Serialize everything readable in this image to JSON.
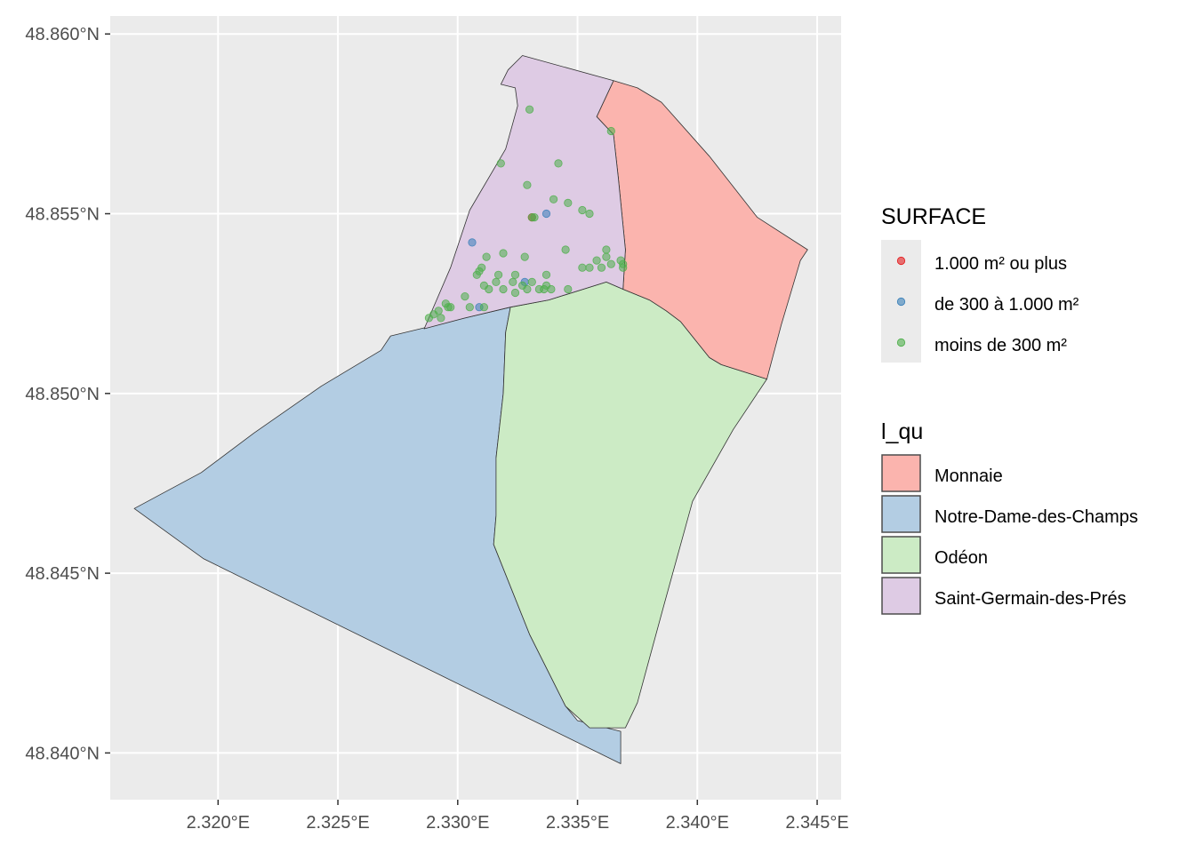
{
  "chart_data": {
    "type": "map",
    "xlim": [
      2.3155,
      2.346
    ],
    "ylim": [
      48.8387,
      48.8605
    ],
    "x_ticks": [
      2.32,
      2.325,
      2.33,
      2.335,
      2.34,
      2.345
    ],
    "x_tick_labels": [
      "2.320°E",
      "2.325°E",
      "2.330°E",
      "2.335°E",
      "2.340°E",
      "2.345°E"
    ],
    "y_ticks": [
      48.84,
      48.845,
      48.85,
      48.855,
      48.86
    ],
    "y_tick_labels": [
      "48.840°N",
      "48.845°N",
      "48.850°N",
      "48.855°N",
      "48.860°N"
    ],
    "grid": true,
    "legend_position": "right",
    "legends": [
      {
        "title": "SURFACE",
        "kind": "point",
        "entries": [
          {
            "label": "1.000 m² ou plus",
            "color": "#e41a1c"
          },
          {
            "label": "de 300 à 1.000 m²",
            "color": "#377eb8"
          },
          {
            "label": "moins de 300 m²",
            "color": "#4daf4a"
          }
        ]
      },
      {
        "title": "l_qu",
        "kind": "fill",
        "entries": [
          {
            "label": "Monnaie",
            "color": "#fbb4ae"
          },
          {
            "label": "Notre-Dame-des-Champs",
            "color": "#b3cde3"
          },
          {
            "label": "Odéon",
            "color": "#ccebc5"
          },
          {
            "label": "Saint-Germain-des-Prés",
            "color": "#decbe4"
          }
        ]
      }
    ],
    "quarters": [
      {
        "name": "Notre-Dame-des-Champs",
        "fill": "#b3cde3",
        "coords": [
          [
            2.3165,
            48.8468
          ],
          [
            2.3193,
            48.8478
          ],
          [
            2.3215,
            48.8489
          ],
          [
            2.3243,
            48.8502
          ],
          [
            2.3268,
            48.8512
          ],
          [
            2.3272,
            48.8516
          ],
          [
            2.3303,
            48.8521
          ],
          [
            2.3322,
            48.8524
          ],
          [
            2.332,
            48.8517
          ],
          [
            2.3319,
            48.85
          ],
          [
            2.3316,
            48.8482
          ],
          [
            2.3316,
            48.8466
          ],
          [
            2.3315,
            48.8458
          ],
          [
            2.333,
            48.8433
          ],
          [
            2.3345,
            48.8413
          ],
          [
            2.335,
            48.8409
          ],
          [
            2.3368,
            48.8406
          ],
          [
            2.3368,
            48.8397
          ],
          [
            2.3194,
            48.8454
          ],
          [
            2.3165,
            48.8468
          ]
        ]
      },
      {
        "name": "Odéon",
        "fill": "#ccebc5",
        "coords": [
          [
            2.3322,
            48.8524
          ],
          [
            2.332,
            48.8517
          ],
          [
            2.3319,
            48.85
          ],
          [
            2.3316,
            48.8482
          ],
          [
            2.3316,
            48.8466
          ],
          [
            2.3315,
            48.8458
          ],
          [
            2.333,
            48.8433
          ],
          [
            2.3345,
            48.8413
          ],
          [
            2.3355,
            48.8407
          ],
          [
            2.337,
            48.8407
          ],
          [
            2.3375,
            48.8414
          ],
          [
            2.3386,
            48.8441
          ],
          [
            2.3398,
            48.847
          ],
          [
            2.3415,
            48.849
          ],
          [
            2.3429,
            48.8504
          ],
          [
            2.341,
            48.8508
          ],
          [
            2.3405,
            48.851
          ],
          [
            2.3393,
            48.852
          ],
          [
            2.3387,
            48.8523
          ],
          [
            2.338,
            48.8526
          ],
          [
            2.3369,
            48.8529
          ],
          [
            2.3362,
            48.8531
          ],
          [
            2.3338,
            48.8526
          ],
          [
            2.3322,
            48.8524
          ]
        ]
      },
      {
        "name": "Monnaie",
        "fill": "#fbb4ae",
        "coords": [
          [
            2.3365,
            48.8587
          ],
          [
            2.3375,
            48.8585
          ],
          [
            2.3385,
            48.8581
          ],
          [
            2.3405,
            48.8566
          ],
          [
            2.3425,
            48.8549
          ],
          [
            2.3446,
            48.854
          ],
          [
            2.3443,
            48.8537
          ],
          [
            2.3435,
            48.8519
          ],
          [
            2.3429,
            48.8504
          ],
          [
            2.341,
            48.8508
          ],
          [
            2.3405,
            48.851
          ],
          [
            2.3393,
            48.852
          ],
          [
            2.3387,
            48.8523
          ],
          [
            2.338,
            48.8526
          ],
          [
            2.3369,
            48.8529
          ],
          [
            2.337,
            48.854
          ],
          [
            2.3367,
            48.856
          ],
          [
            2.3365,
            48.8572
          ],
          [
            2.3358,
            48.8577
          ],
          [
            2.3365,
            48.8587
          ]
        ]
      },
      {
        "name": "Saint-Germain-des-Prés",
        "fill": "#decbe4",
        "coords": [
          [
            2.3327,
            48.8594
          ],
          [
            2.3365,
            48.8587
          ],
          [
            2.3358,
            48.8577
          ],
          [
            2.3365,
            48.8572
          ],
          [
            2.3367,
            48.856
          ],
          [
            2.337,
            48.854
          ],
          [
            2.3369,
            48.8529
          ],
          [
            2.3362,
            48.8531
          ],
          [
            2.3338,
            48.8526
          ],
          [
            2.3322,
            48.8524
          ],
          [
            2.3303,
            48.8521
          ],
          [
            2.3286,
            48.8518
          ],
          [
            2.3297,
            48.8535
          ],
          [
            2.3305,
            48.8551
          ],
          [
            2.332,
            48.8568
          ],
          [
            2.3325,
            48.858
          ],
          [
            2.3324,
            48.8585
          ],
          [
            2.3318,
            48.8586
          ],
          [
            2.3321,
            48.859
          ],
          [
            2.3327,
            48.8594
          ]
        ]
      }
    ],
    "points": [
      {
        "surface": "1.000 m² ou plus",
        "coords": [
          [
            2.3331,
            48.8549
          ]
        ]
      },
      {
        "surface": "de 300 à 1.000 m²",
        "coords": [
          [
            2.3306,
            48.8542
          ],
          [
            2.3337,
            48.855
          ],
          [
            2.3328,
            48.8531
          ],
          [
            2.3309,
            48.8524
          ]
        ]
      },
      {
        "surface": "moins de 300 m²",
        "coords": [
          [
            2.333,
            48.8579
          ],
          [
            2.3364,
            48.8573
          ],
          [
            2.3318,
            48.8564
          ],
          [
            2.3342,
            48.8564
          ],
          [
            2.3329,
            48.8558
          ],
          [
            2.334,
            48.8554
          ],
          [
            2.3346,
            48.8553
          ],
          [
            2.3352,
            48.8551
          ],
          [
            2.3355,
            48.855
          ],
          [
            2.3345,
            48.854
          ],
          [
            2.3362,
            48.854
          ],
          [
            2.3362,
            48.8538
          ],
          [
            2.3352,
            48.8535
          ],
          [
            2.3355,
            48.8535
          ],
          [
            2.3358,
            48.8537
          ],
          [
            2.3368,
            48.8537
          ],
          [
            2.3369,
            48.8536
          ],
          [
            2.3369,
            48.8535
          ],
          [
            2.336,
            48.8535
          ],
          [
            2.3364,
            48.8536
          ],
          [
            2.3319,
            48.8539
          ],
          [
            2.3328,
            48.8538
          ],
          [
            2.3312,
            48.8538
          ],
          [
            2.331,
            48.8535
          ],
          [
            2.3308,
            48.8533
          ],
          [
            2.3309,
            48.8534
          ],
          [
            2.3317,
            48.8533
          ],
          [
            2.3324,
            48.8533
          ],
          [
            2.3337,
            48.8533
          ],
          [
            2.3316,
            48.8531
          ],
          [
            2.3323,
            48.8531
          ],
          [
            2.3331,
            48.8531
          ],
          [
            2.3337,
            48.853
          ],
          [
            2.3327,
            48.853
          ],
          [
            2.3329,
            48.8529
          ],
          [
            2.3334,
            48.8529
          ],
          [
            2.3303,
            48.8527
          ],
          [
            2.3311,
            48.853
          ],
          [
            2.3313,
            48.8529
          ],
          [
            2.3319,
            48.8529
          ],
          [
            2.3346,
            48.8529
          ],
          [
            2.3324,
            48.8528
          ],
          [
            2.3336,
            48.8529
          ],
          [
            2.3339,
            48.8529
          ],
          [
            2.3295,
            48.8525
          ],
          [
            2.3296,
            48.8524
          ],
          [
            2.3305,
            48.8524
          ],
          [
            2.3297,
            48.8524
          ],
          [
            2.3292,
            48.8523
          ],
          [
            2.329,
            48.8522
          ],
          [
            2.3293,
            48.8521
          ],
          [
            2.3288,
            48.8521
          ],
          [
            2.3311,
            48.8524
          ],
          [
            2.3332,
            48.8549
          ],
          [
            2.3331,
            48.8549
          ]
        ]
      }
    ]
  }
}
